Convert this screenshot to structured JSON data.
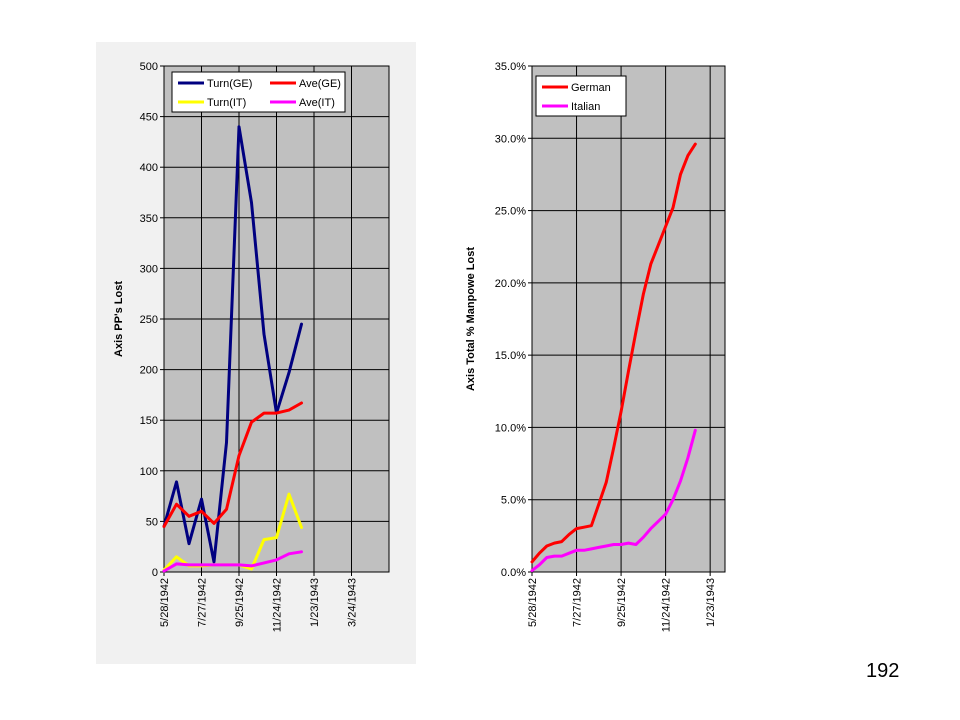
{
  "page_number": "192",
  "chart_data": [
    {
      "type": "line",
      "title": "",
      "xlabel": "",
      "ylabel": "Axis PP's Lost",
      "ylim": [
        0,
        500
      ],
      "yticks": [
        "0",
        "50",
        "100",
        "150",
        "200",
        "250",
        "300",
        "350",
        "400",
        "450",
        "500"
      ],
      "xlim": [
        "5/28/1942",
        "5/23/1943"
      ],
      "xticks": [
        "5/28/1942",
        "7/27/1942",
        "9/25/1942",
        "11/24/1942",
        "1/23/1943",
        "3/24/1943"
      ],
      "grid": true,
      "background": "#c0c0c0",
      "legend": {
        "position": "top",
        "columns": 2
      },
      "series": [
        {
          "name": "Turn(GE)",
          "color": "#000080",
          "x": [
            "5/28/1942",
            "6/17/1942",
            "7/7/1942",
            "7/27/1942",
            "8/16/1942",
            "9/5/1942",
            "9/25/1942",
            "10/15/1942",
            "11/4/1942",
            "11/24/1942",
            "12/14/1942",
            "1/3/1943"
          ],
          "values": [
            45,
            89,
            28,
            72,
            10,
            128,
            440,
            365,
            235,
            157,
            197,
            245
          ]
        },
        {
          "name": "Ave(GE)",
          "color": "#ff0000",
          "x": [
            "5/28/1942",
            "6/17/1942",
            "7/7/1942",
            "7/27/1942",
            "8/16/1942",
            "9/5/1942",
            "9/25/1942",
            "10/15/1942",
            "11/4/1942",
            "11/24/1942",
            "12/14/1942",
            "1/3/1943"
          ],
          "values": [
            45,
            67,
            55,
            60,
            48,
            62,
            115,
            148,
            157,
            157,
            160,
            167
          ]
        },
        {
          "name": "Turn(IT)",
          "color": "#ffff00",
          "x": [
            "5/28/1942",
            "6/17/1942",
            "7/7/1942",
            "7/27/1942",
            "8/16/1942",
            "9/5/1942",
            "9/25/1942",
            "10/15/1942",
            "11/4/1942",
            "11/24/1942",
            "12/14/1942",
            "1/3/1943"
          ],
          "values": [
            2,
            15,
            6,
            6,
            7,
            7,
            7,
            3,
            32,
            34,
            77,
            44
          ]
        },
        {
          "name": "Ave(IT)",
          "color": "#ff00ff",
          "x": [
            "5/28/1942",
            "6/17/1942",
            "7/7/1942",
            "7/27/1942",
            "8/16/1942",
            "9/5/1942",
            "9/25/1942",
            "10/15/1942",
            "11/4/1942",
            "11/24/1942",
            "12/14/1942",
            "1/3/1943"
          ],
          "values": [
            1,
            8,
            7,
            7,
            7,
            7,
            7,
            6,
            9,
            12,
            18,
            20
          ]
        }
      ]
    },
    {
      "type": "line",
      "title": "",
      "xlabel": "",
      "ylabel": "Axis Total % Manpowe Lost",
      "ylim": [
        0,
        35
      ],
      "yticks": [
        "0.0%",
        "5.0%",
        "10.0%",
        "15.0%",
        "20.0%",
        "25.0%",
        "30.0%",
        "35.0%"
      ],
      "xlim": [
        "5/28/1942",
        "2/12/1943"
      ],
      "xticks": [
        "5/28/1942",
        "7/27/1942",
        "9/25/1942",
        "11/24/1942",
        "1/23/1943"
      ],
      "grid": true,
      "background": "#c0c0c0",
      "legend": {
        "position": "top-left",
        "columns": 1
      },
      "series": [
        {
          "name": "German",
          "color": "#ff0000",
          "x": [
            "5/28/1942",
            "6/7/1942",
            "6/17/1942",
            "6/27/1942",
            "7/7/1942",
            "7/17/1942",
            "7/27/1942",
            "8/6/1942",
            "8/16/1942",
            "8/26/1942",
            "9/5/1942",
            "9/15/1942",
            "9/25/1942",
            "10/5/1942",
            "10/15/1942",
            "10/25/1942",
            "11/4/1942",
            "11/14/1942",
            "11/24/1942",
            "12/4/1942",
            "12/14/1942",
            "12/24/1942",
            "1/3/1943"
          ],
          "values": [
            0.7,
            1.3,
            1.8,
            2.0,
            2.1,
            2.6,
            3.0,
            3.1,
            3.2,
            4.7,
            6.2,
            8.6,
            11.1,
            13.9,
            16.6,
            19.2,
            21.3,
            22.6,
            23.9,
            25.2,
            27.5,
            28.8,
            29.6
          ]
        },
        {
          "name": "Italian",
          "color": "#ff00ff",
          "x": [
            "5/28/1942",
            "6/7/1942",
            "6/17/1942",
            "6/27/1942",
            "7/7/1942",
            "7/17/1942",
            "7/27/1942",
            "8/6/1942",
            "8/16/1942",
            "8/26/1942",
            "9/5/1942",
            "9/15/1942",
            "9/25/1942",
            "10/5/1942",
            "10/15/1942",
            "10/25/1942",
            "11/4/1942",
            "11/14/1942",
            "11/24/1942",
            "12/4/1942",
            "12/14/1942",
            "12/24/1942",
            "1/3/1943"
          ],
          "values": [
            0.1,
            0.5,
            1.0,
            1.1,
            1.1,
            1.3,
            1.5,
            1.5,
            1.6,
            1.7,
            1.8,
            1.9,
            1.9,
            2.0,
            1.9,
            2.4,
            3.0,
            3.5,
            4.0,
            5.0,
            6.3,
            7.9,
            9.8
          ]
        }
      ]
    }
  ]
}
